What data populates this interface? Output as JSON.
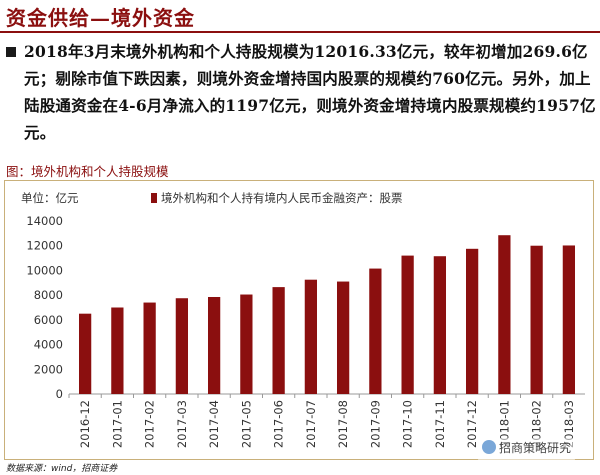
{
  "slide": {
    "title": "资金供给—境外资金"
  },
  "body": {
    "paragraph": "2018年3月末境外机构和个人持股规模为12016.33亿元，较年初增加269.6亿元；剔除市值下跌因素，则境外资金增持国内股票的规模约760亿元。另外，加上陆股通资金在4-6月净流入的1197亿元，则境外资金增持境内股票规模约1957亿元。"
  },
  "figure": {
    "caption": "图：境外机构和个人持股规模"
  },
  "chart_data": {
    "type": "bar",
    "unit_label": "单位：亿元",
    "series": [
      {
        "name": "境外机构和个人持有境内人民币金融资产：股票",
        "color": "#8b0f0f",
        "values": [
          6500,
          7000,
          7400,
          7750,
          7850,
          8050,
          8650,
          9250,
          9100,
          10150,
          11200,
          11150,
          11750,
          12850,
          12000,
          12020
        ]
      }
    ],
    "categories": [
      "2016-12",
      "2017-01",
      "2017-02",
      "2017-03",
      "2017-04",
      "2017-05",
      "2017-06",
      "2017-07",
      "2017-08",
      "2017-09",
      "2017-10",
      "2017-11",
      "2017-12",
      "2018-01",
      "2018-02",
      "2018-03"
    ],
    "yticks": [
      "0",
      "2000",
      "4000",
      "6000",
      "8000",
      "10000",
      "12000",
      "14000"
    ],
    "ylim": [
      0,
      14000
    ],
    "grid": false,
    "legend_position": "top"
  },
  "source": {
    "text": "数据来源：wind，招商证券"
  },
  "watermark": {
    "text": "招商策略研究",
    "icon": "wechat-icon"
  }
}
